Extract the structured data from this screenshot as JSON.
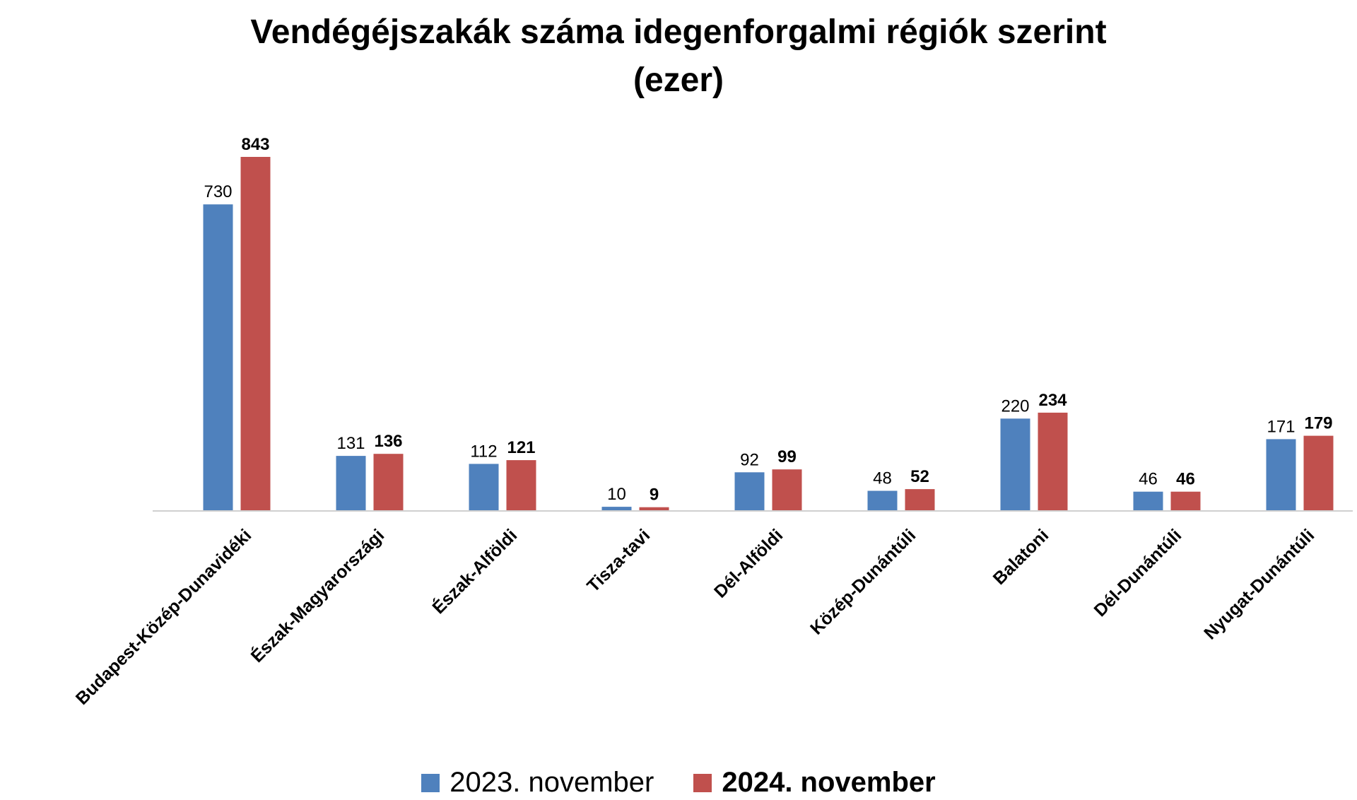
{
  "chart_data": {
    "type": "bar",
    "title": "Vendégéjszakák száma idegenforgalmi régiók szerint",
    "subtitle": "(ezer)",
    "categories": [
      "Budapest-Közép-Dunavidéki",
      "Észak-Magyarországi",
      "Észak-Alföldi",
      "Tisza-tavi",
      "Dél-Alföldi",
      "Közép-Dunántúli",
      "Balatoni",
      "Dél-Dunántúli",
      "Nyugat-Dunántúli"
    ],
    "series": [
      {
        "name": "2023. november",
        "values": [
          730,
          131,
          112,
          10,
          92,
          48,
          220,
          46,
          171
        ],
        "color": "#4f81bd"
      },
      {
        "name": "2024. november",
        "values": [
          843,
          136,
          121,
          9,
          99,
          52,
          234,
          46,
          179
        ],
        "color": "#c0504d"
      }
    ],
    "ylim": [
      0,
      843
    ],
    "grid": false,
    "legend_position": "bottom"
  }
}
